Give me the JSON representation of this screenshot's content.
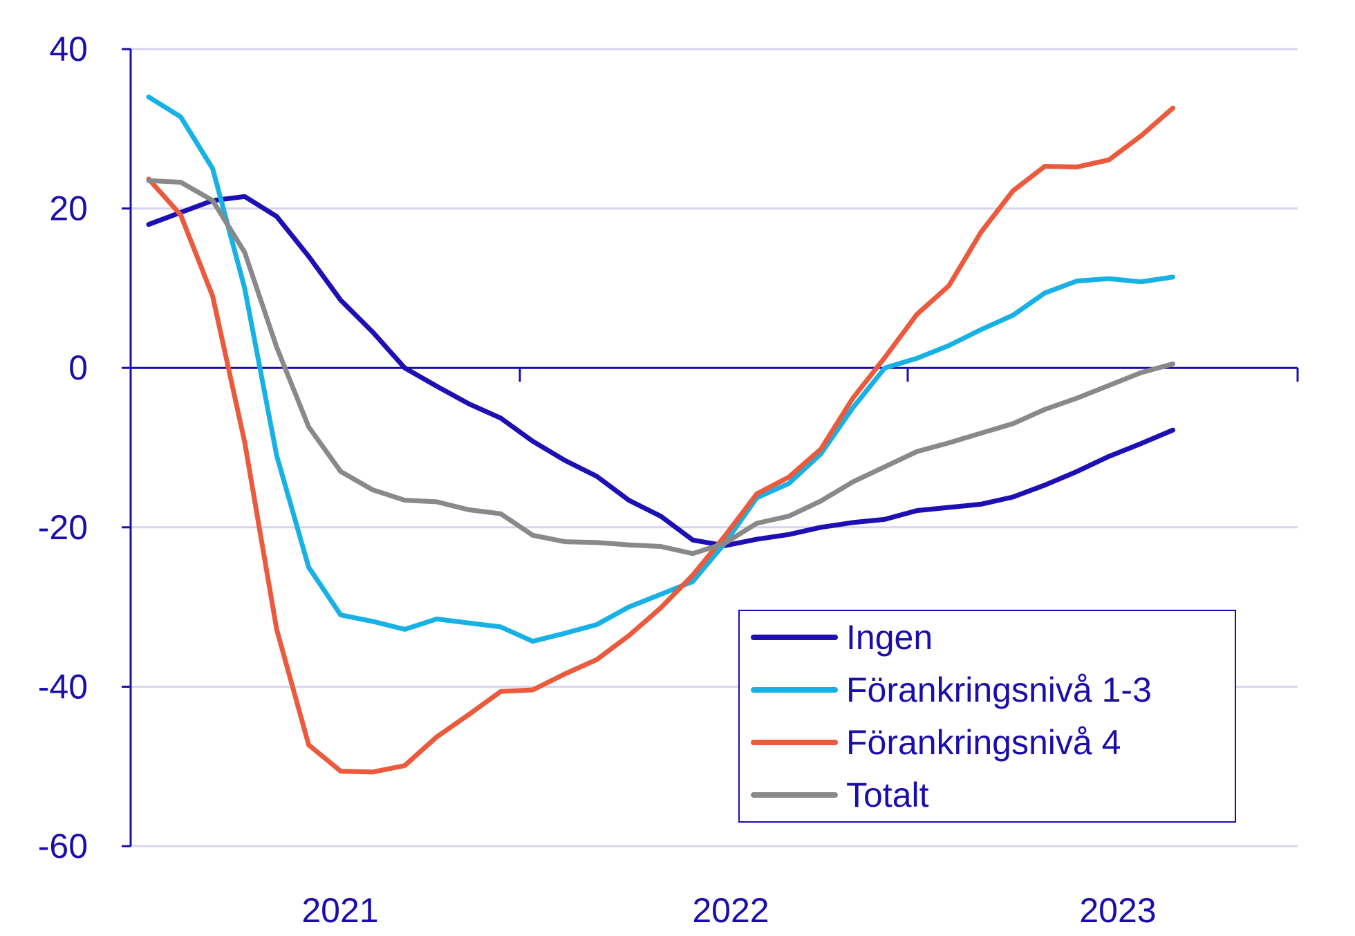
{
  "chart_data": {
    "type": "line",
    "title": "",
    "xlabel": "",
    "ylabel": "",
    "ylim": [
      -60,
      40
    ],
    "yticks": [
      "40",
      "20",
      "0",
      "-20",
      "-40",
      "-60"
    ],
    "yticks_values": [
      40,
      20,
      0,
      -20,
      -40,
      -60
    ],
    "xticks": [
      "2021",
      "2022",
      "2023"
    ],
    "grid": true,
    "legend_position": "bottom-right",
    "x": [
      "2020-07",
      "2020-08",
      "2020-09",
      "2020-10",
      "2020-11",
      "2020-12",
      "2021-01",
      "2021-02",
      "2021-03",
      "2021-04",
      "2021-05",
      "2021-06",
      "2021-07",
      "2021-08",
      "2021-09",
      "2021-10",
      "2021-11",
      "2021-12",
      "2022-01",
      "2022-02",
      "2022-03",
      "2022-04",
      "2022-05",
      "2022-06",
      "2022-07",
      "2022-08",
      "2022-09",
      "2022-10",
      "2022-11",
      "2022-12",
      "2023-01",
      "2023-02",
      "2023-03"
    ],
    "series": [
      {
        "name": "Ingen",
        "color": "#1d0fb4",
        "values": [
          18,
          19.5,
          21,
          21.5,
          19,
          14,
          8.5,
          4.5,
          0,
          -2.3,
          -4.5,
          -6.3,
          -9.2,
          -11.6,
          -13.6,
          -16.6,
          -18.6,
          -21.6,
          -22.3,
          -21.5,
          -20.9,
          -20,
          -19.4,
          -19,
          -17.9,
          -17.5,
          -17.1,
          -16.2,
          -14.7,
          -13,
          -11.1,
          -9.5,
          -7.8
        ]
      },
      {
        "name": "Förankringsnivå 1-3",
        "color": "#17b1e6",
        "values": [
          34,
          31.5,
          25,
          10,
          -11,
          -25,
          -31,
          -31.8,
          -32.8,
          -31.5,
          -32,
          -32.5,
          -34.3,
          -33.3,
          -32.2,
          -30,
          -28.4,
          -26.8,
          -22,
          -16.3,
          -14.5,
          -10.8,
          -5,
          0,
          1.2,
          2.8,
          4.8,
          6.6,
          9.4,
          10.9,
          11.2,
          10.8,
          11.4
        ]
      },
      {
        "name": "Förankringsnivå 4",
        "color": "#eb5a3c",
        "values": [
          23.7,
          19.2,
          9,
          -9.3,
          -32.8,
          -47.3,
          -50.6,
          -50.7,
          -49.9,
          -46.3,
          -43.5,
          -40.6,
          -40.4,
          -38.4,
          -36.6,
          -33.6,
          -30.1,
          -26,
          -21.1,
          -15.8,
          -13.7,
          -10.2,
          -3.8,
          1.3,
          6.7,
          10.3,
          17,
          22.2,
          25.3,
          25.2,
          26.1,
          29.1,
          32.6
        ]
      },
      {
        "name": "Totalt",
        "color": "#898989",
        "values": [
          23.5,
          23.3,
          21,
          14.5,
          2.6,
          -7.4,
          -13,
          -15.3,
          -16.6,
          -16.8,
          -17.8,
          -18.3,
          -21,
          -21.8,
          -21.9,
          -22.2,
          -22.4,
          -23.3,
          -22,
          -19.5,
          -18.6,
          -16.7,
          -14.3,
          -12.4,
          -10.5,
          -9.4,
          -8.2,
          -7,
          -5.2,
          -3.8,
          -2.2,
          -0.6,
          0.5
        ]
      }
    ]
  }
}
